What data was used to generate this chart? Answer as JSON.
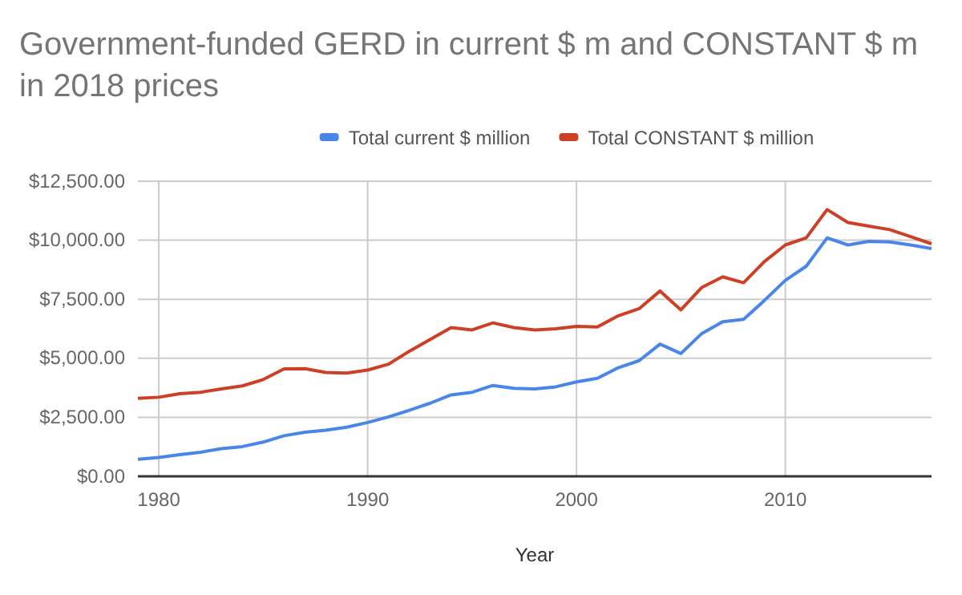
{
  "chart_data": {
    "type": "line",
    "title": "Government-funded GERD in current $ m and CONSTANT $ m in 2018 prices",
    "xlabel": "Year",
    "x": [
      1979,
      1980,
      1981,
      1982,
      1983,
      1984,
      1985,
      1986,
      1987,
      1988,
      1989,
      1990,
      1991,
      1992,
      1993,
      1994,
      1995,
      1996,
      1997,
      1998,
      1999,
      2000,
      2001,
      2002,
      2003,
      2004,
      2005,
      2006,
      2007,
      2008,
      2009,
      2010,
      2011,
      2012,
      2013,
      2014,
      2015,
      2016,
      2017
    ],
    "series": [
      {
        "name": "Total current $ million",
        "color": "#4a86e8",
        "values": [
          720,
          800,
          920,
          1020,
          1170,
          1260,
          1450,
          1720,
          1870,
          1950,
          2080,
          2280,
          2520,
          2800,
          3100,
          3450,
          3560,
          3850,
          3730,
          3700,
          3790,
          4000,
          4150,
          4600,
          4900,
          5600,
          5200,
          6050,
          6550,
          6650,
          7450,
          8300,
          8900,
          10100,
          9800,
          9950,
          9930,
          9800,
          9650
        ]
      },
      {
        "name": "Total CONSTANT $ million",
        "color": "#cc4125",
        "values": [
          3300,
          3350,
          3500,
          3560,
          3700,
          3830,
          4100,
          4550,
          4560,
          4400,
          4370,
          4500,
          4750,
          5300,
          5800,
          6300,
          6200,
          6500,
          6300,
          6200,
          6250,
          6350,
          6330,
          6800,
          7100,
          7850,
          7050,
          8000,
          8450,
          8200,
          9100,
          9800,
          10100,
          11300,
          10750,
          10600,
          10450,
          10150,
          9850
        ]
      }
    ],
    "xlim": [
      1979,
      2017
    ],
    "xticks": [
      1980,
      1990,
      2000,
      2010
    ],
    "ylim": [
      0,
      12500
    ],
    "yticks": [
      {
        "value": 0,
        "label": "$0.00"
      },
      {
        "value": 2500,
        "label": "$2,500.00"
      },
      {
        "value": 5000,
        "label": "$5,000.00"
      },
      {
        "value": 7500,
        "label": "$7,500.00"
      },
      {
        "value": 10000,
        "label": "$10,000.00"
      },
      {
        "value": 12500,
        "label": "$12,500.00"
      }
    ],
    "grid": true,
    "legend": "top",
    "marker": "none",
    "line_style": "solid"
  }
}
